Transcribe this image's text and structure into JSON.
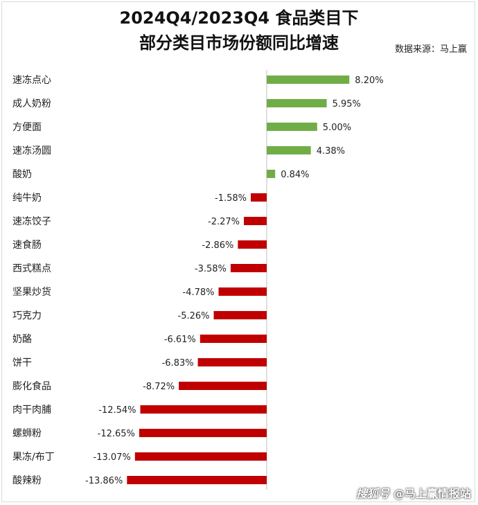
{
  "title_line1": "2024Q4/2023Q4 食品类目下",
  "title_line2": "部分类目市场份额同比增速",
  "source": "数据来源：马上赢",
  "watermark_prefix": "搜狐号",
  "watermark": "@马上赢情报站",
  "colors": {
    "positive": "#70ad47",
    "negative": "#c00000"
  },
  "chart_data": {
    "type": "bar",
    "orientation": "horizontal",
    "title": "2024Q4/2023Q4 食品类目下部分类目市场份额同比增速",
    "categories": [
      "速冻点心",
      "成人奶粉",
      "方便面",
      "速冻汤圆",
      "酸奶",
      "纯牛奶",
      "速冻饺子",
      "速食肠",
      "西式糕点",
      "坚果炒货",
      "巧克力",
      "奶酪",
      "饼干",
      "膨化食品",
      "肉干肉脯",
      "螺蛳粉",
      "果冻/布丁",
      "酸辣粉"
    ],
    "values": [
      8.2,
      5.95,
      5.0,
      4.38,
      0.84,
      -1.58,
      -2.27,
      -2.86,
      -3.58,
      -4.78,
      -5.26,
      -6.61,
      -6.83,
      -8.72,
      -12.54,
      -12.65,
      -13.07,
      -13.86
    ],
    "value_labels": [
      "8.20%",
      "5.95%",
      "5.00%",
      "4.38%",
      "0.84%",
      "-1.58%",
      "-2.27%",
      "-2.86%",
      "-3.58%",
      "-4.78%",
      "-5.26%",
      "-6.61%",
      "-6.83%",
      "-8.72%",
      "-12.54%",
      "-12.65%",
      "-13.07%",
      "-13.86%"
    ],
    "unit": "%",
    "grid": false,
    "legend": "none"
  }
}
